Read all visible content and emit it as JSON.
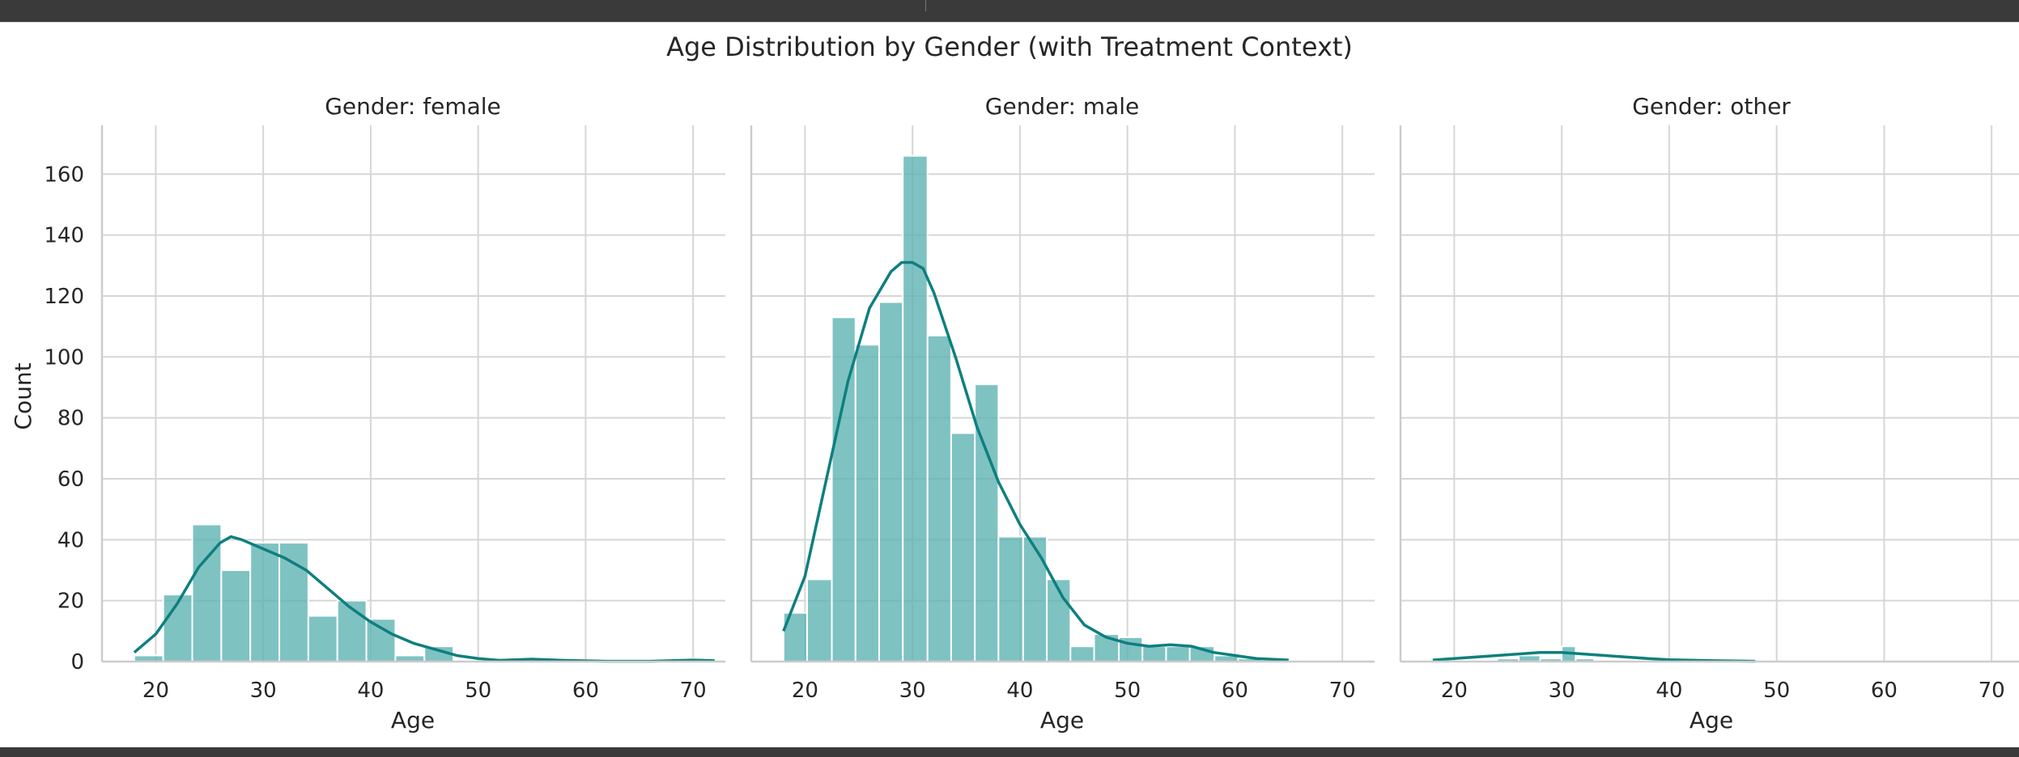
{
  "chart_data": {
    "type": "bar",
    "title": "Age Distribution by Gender (with Treatment Context)",
    "ylabel": "Count",
    "xlabel": "Age",
    "xlim": [
      15,
      73
    ],
    "ylim": [
      0,
      176
    ],
    "x_ticks": [
      20,
      30,
      40,
      50,
      60,
      70
    ],
    "y_ticks": [
      0,
      20,
      40,
      60,
      80,
      100,
      120,
      140,
      160
    ],
    "grid": true,
    "bar_color": "#5fb3b3",
    "kde_color": "#0e7f7f",
    "panels": [
      {
        "title": "Gender: female",
        "bins": [
          {
            "x0": 18.0,
            "x1": 20.7,
            "count": 2
          },
          {
            "x0": 20.7,
            "x1": 23.4,
            "count": 22
          },
          {
            "x0": 23.4,
            "x1": 26.1,
            "count": 45
          },
          {
            "x0": 26.1,
            "x1": 28.8,
            "count": 30
          },
          {
            "x0": 28.8,
            "x1": 31.5,
            "count": 39
          },
          {
            "x0": 31.5,
            "x1": 34.2,
            "count": 39
          },
          {
            "x0": 34.2,
            "x1": 36.9,
            "count": 15
          },
          {
            "x0": 36.9,
            "x1": 39.6,
            "count": 20
          },
          {
            "x0": 39.6,
            "x1": 42.3,
            "count": 14
          },
          {
            "x0": 42.3,
            "x1": 45.0,
            "count": 2
          },
          {
            "x0": 45.0,
            "x1": 47.7,
            "count": 5
          },
          {
            "x0": 69.3,
            "x1": 72.0,
            "count": 1
          }
        ],
        "kde": {
          "x": [
            18,
            20,
            22,
            24,
            26,
            27,
            28,
            30,
            32,
            34,
            36,
            38,
            40,
            42,
            44,
            46,
            48,
            50,
            52,
            55,
            58,
            62,
            66,
            70,
            72
          ],
          "y": [
            3,
            9,
            19,
            31,
            39,
            41,
            40,
            37,
            34,
            30,
            24,
            18,
            13,
            9,
            6,
            4,
            2,
            1,
            0.4,
            0.8,
            0.4,
            0.1,
            0.1,
            0.5,
            0.3
          ]
        }
      },
      {
        "title": "Gender: male",
        "bins": [
          {
            "x0": 18.0,
            "x1": 20.2,
            "count": 16
          },
          {
            "x0": 20.2,
            "x1": 22.5,
            "count": 27
          },
          {
            "x0": 22.5,
            "x1": 24.7,
            "count": 113
          },
          {
            "x0": 24.7,
            "x1": 26.9,
            "count": 104
          },
          {
            "x0": 26.9,
            "x1": 29.1,
            "count": 118
          },
          {
            "x0": 29.1,
            "x1": 31.4,
            "count": 166
          },
          {
            "x0": 31.4,
            "x1": 33.6,
            "count": 107
          },
          {
            "x0": 33.6,
            "x1": 35.8,
            "count": 75
          },
          {
            "x0": 35.8,
            "x1": 38.0,
            "count": 91
          },
          {
            "x0": 38.0,
            "x1": 40.3,
            "count": 41
          },
          {
            "x0": 40.3,
            "x1": 42.5,
            "count": 41
          },
          {
            "x0": 42.5,
            "x1": 44.7,
            "count": 27
          },
          {
            "x0": 44.7,
            "x1": 46.9,
            "count": 5
          },
          {
            "x0": 46.9,
            "x1": 49.2,
            "count": 9
          },
          {
            "x0": 49.2,
            "x1": 51.4,
            "count": 8
          },
          {
            "x0": 51.4,
            "x1": 53.6,
            "count": 5
          },
          {
            "x0": 53.6,
            "x1": 55.8,
            "count": 5
          },
          {
            "x0": 55.8,
            "x1": 58.1,
            "count": 5
          },
          {
            "x0": 58.1,
            "x1": 60.3,
            "count": 2
          },
          {
            "x0": 60.3,
            "x1": 62.5,
            "count": 1
          }
        ],
        "kde": {
          "x": [
            18,
            20,
            22,
            24,
            26,
            28,
            29,
            30,
            31,
            32,
            34,
            36,
            38,
            40,
            42,
            44,
            46,
            48,
            50,
            52,
            54,
            56,
            58,
            60,
            62,
            65
          ],
          "y": [
            10,
            28,
            60,
            92,
            116,
            128,
            131,
            131,
            129,
            121,
            100,
            77,
            59,
            45,
            34,
            21,
            12,
            8,
            6,
            5,
            5.5,
            5,
            3,
            2,
            1,
            0.5
          ]
        }
      },
      {
        "title": "Gender: other",
        "bins": [
          {
            "x0": 24.0,
            "x1": 26.0,
            "count": 1
          },
          {
            "x0": 26.0,
            "x1": 28.0,
            "count": 2
          },
          {
            "x0": 28.0,
            "x1": 30.0,
            "count": 1
          },
          {
            "x0": 30.0,
            "x1": 31.3,
            "count": 5
          },
          {
            "x0": 31.3,
            "x1": 33.0,
            "count": 1
          }
        ],
        "kde": {
          "x": [
            18,
            20,
            22,
            24,
            26,
            28,
            30,
            32,
            34,
            36,
            38,
            40,
            44,
            48
          ],
          "y": [
            0.5,
            1,
            1.5,
            2,
            2.5,
            3,
            3,
            2.5,
            2,
            1.5,
            1,
            0.6,
            0.3,
            0.1
          ]
        }
      }
    ]
  }
}
